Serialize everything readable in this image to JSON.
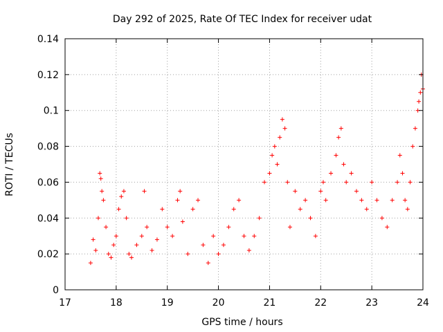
{
  "chart_data": {
    "type": "scatter",
    "title": "Day 292 of 2025, Rate Of TEC Index for receiver udat",
    "xlabel": "GPS time / hours",
    "ylabel": "ROTI / TECUs",
    "xlim": [
      17,
      24
    ],
    "ylim": [
      0,
      0.14
    ],
    "x_ticks": [
      17,
      18,
      19,
      20,
      21,
      22,
      23,
      24
    ],
    "x_tick_labels": [
      "17",
      "18",
      "19",
      "20",
      "21",
      "22",
      "23",
      "24"
    ],
    "y_ticks": [
      0,
      0.02,
      0.04,
      0.06,
      0.08,
      0.1,
      0.12,
      0.14
    ],
    "y_tick_labels": [
      "0",
      "0.02",
      "0.04",
      "0.06",
      "0.08",
      "0.1",
      "0.12",
      "0.14"
    ],
    "grid": true,
    "marker": "+",
    "color": "#ff0000",
    "series": [
      {
        "name": "ROTI",
        "x": [
          17.5,
          17.55,
          17.6,
          17.65,
          17.68,
          17.7,
          17.72,
          17.75,
          17.8,
          17.85,
          17.9,
          17.95,
          18.0,
          18.05,
          18.1,
          18.15,
          18.2,
          18.25,
          18.3,
          18.4,
          18.5,
          18.55,
          18.6,
          18.7,
          18.8,
          18.9,
          19.0,
          19.1,
          19.2,
          19.25,
          19.3,
          19.4,
          19.5,
          19.6,
          19.7,
          19.8,
          19.9,
          20.0,
          20.1,
          20.2,
          20.3,
          20.4,
          20.5,
          20.6,
          20.7,
          20.8,
          20.9,
          21.0,
          21.05,
          21.1,
          21.15,
          21.2,
          21.25,
          21.3,
          21.35,
          21.4,
          21.5,
          21.6,
          21.7,
          21.8,
          21.9,
          22.0,
          22.05,
          22.1,
          22.2,
          22.3,
          22.35,
          22.4,
          22.45,
          22.5,
          22.6,
          22.7,
          22.8,
          22.9,
          23.0,
          23.1,
          23.2,
          23.3,
          23.4,
          23.5,
          23.55,
          23.6,
          23.65,
          23.7,
          23.75,
          23.8,
          23.85,
          23.9,
          23.92,
          23.95,
          23.97,
          24.0
        ],
        "y": [
          0.015,
          0.028,
          0.022,
          0.04,
          0.065,
          0.062,
          0.055,
          0.05,
          0.035,
          0.02,
          0.018,
          0.025,
          0.03,
          0.045,
          0.052,
          0.055,
          0.04,
          0.02,
          0.018,
          0.025,
          0.03,
          0.055,
          0.035,
          0.022,
          0.028,
          0.045,
          0.035,
          0.03,
          0.05,
          0.055,
          0.038,
          0.02,
          0.045,
          0.05,
          0.025,
          0.015,
          0.03,
          0.02,
          0.025,
          0.035,
          0.045,
          0.05,
          0.03,
          0.022,
          0.03,
          0.04,
          0.06,
          0.065,
          0.075,
          0.08,
          0.07,
          0.085,
          0.095,
          0.09,
          0.06,
          0.035,
          0.055,
          0.045,
          0.05,
          0.04,
          0.03,
          0.055,
          0.06,
          0.05,
          0.065,
          0.075,
          0.085,
          0.09,
          0.07,
          0.06,
          0.065,
          0.055,
          0.05,
          0.045,
          0.06,
          0.05,
          0.04,
          0.035,
          0.05,
          0.06,
          0.075,
          0.065,
          0.05,
          0.045,
          0.06,
          0.08,
          0.09,
          0.1,
          0.105,
          0.11,
          0.12,
          0.112
        ]
      }
    ]
  }
}
